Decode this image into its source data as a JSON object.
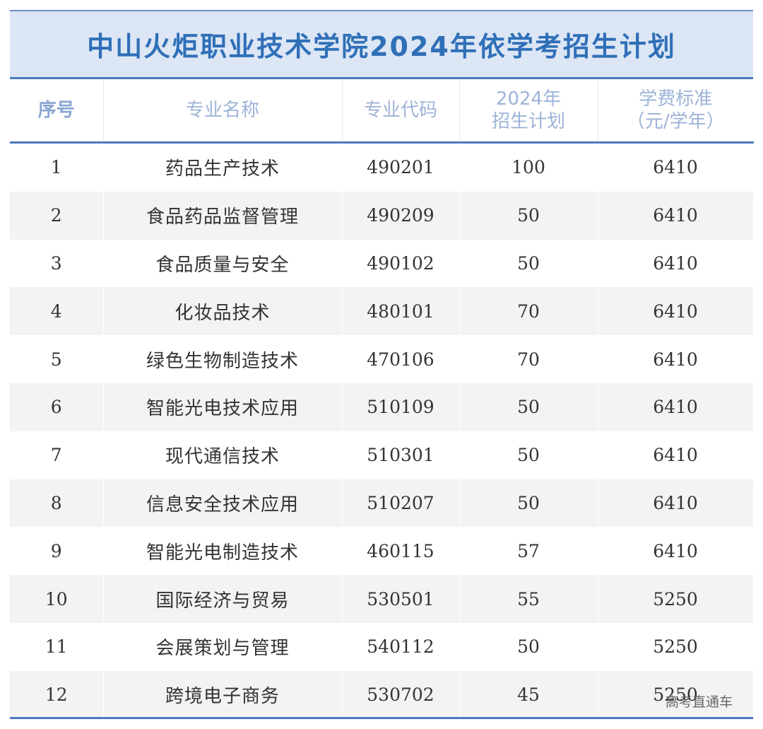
{
  "title": "中山火炬职业技术学院2024年依学考招生计划",
  "headers": {
    "index": "序号",
    "name": "专业名称",
    "code": "专业代码",
    "plan_line1": "2024年",
    "plan_line2": "招生计划",
    "fee_line1": "学费标准",
    "fee_line2": "（元/学年）"
  },
  "rows": [
    {
      "index": "1",
      "name": "药品生产技术",
      "code": "490201",
      "plan": "100",
      "fee": "6410"
    },
    {
      "index": "2",
      "name": "食品药品监督管理",
      "code": "490209",
      "plan": "50",
      "fee": "6410"
    },
    {
      "index": "3",
      "name": "食品质量与安全",
      "code": "490102",
      "plan": "50",
      "fee": "6410"
    },
    {
      "index": "4",
      "name": "化妆品技术",
      "code": "480101",
      "plan": "70",
      "fee": "6410"
    },
    {
      "index": "5",
      "name": "绿色生物制造技术",
      "code": "470106",
      "plan": "70",
      "fee": "6410"
    },
    {
      "index": "6",
      "name": "智能光电技术应用",
      "code": "510109",
      "plan": "50",
      "fee": "6410"
    },
    {
      "index": "7",
      "name": "现代通信技术",
      "code": "510301",
      "plan": "50",
      "fee": "6410"
    },
    {
      "index": "8",
      "name": "信息安全技术应用",
      "code": "510207",
      "plan": "50",
      "fee": "6410"
    },
    {
      "index": "9",
      "name": "智能光电制造技术",
      "code": "460115",
      "plan": "57",
      "fee": "6410"
    },
    {
      "index": "10",
      "name": "国际经济与贸易",
      "code": "530501",
      "plan": "55",
      "fee": "5250"
    },
    {
      "index": "11",
      "name": "会展策划与管理",
      "code": "540112",
      "plan": "50",
      "fee": "5250"
    },
    {
      "index": "12",
      "name": "跨境电子商务",
      "code": "530702",
      "plan": "45",
      "fee": "5250"
    }
  ],
  "watermark": "高考直通车"
}
